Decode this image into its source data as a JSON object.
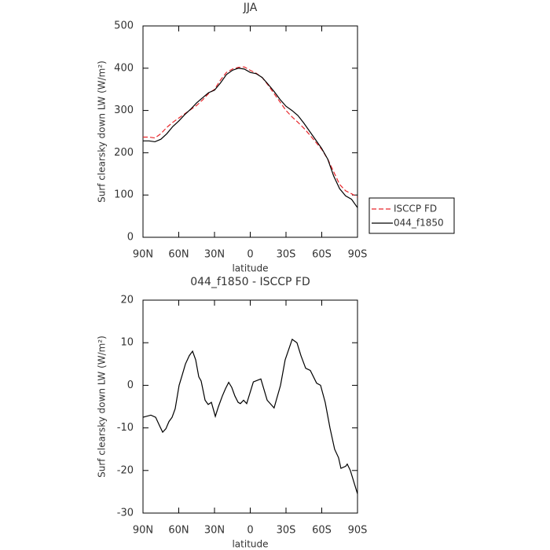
{
  "chart_data": [
    {
      "type": "line",
      "title": "JJA",
      "x_label": "latitude",
      "y_label": "Surf clearsky down LW (W/m²)",
      "xlim": [
        90,
        -90
      ],
      "ylim": [
        0,
        500
      ],
      "xticks": [
        {
          "value": 90,
          "label": "90N"
        },
        {
          "value": 60,
          "label": "60N"
        },
        {
          "value": 30,
          "label": "30N"
        },
        0,
        {
          "value": -30,
          "label": "30S"
        },
        {
          "value": -60,
          "label": "60S"
        },
        {
          "value": -90,
          "label": "90S"
        }
      ],
      "yticks": [
        0,
        100,
        200,
        300,
        400,
        500
      ],
      "legend": "right",
      "x": [
        90,
        85,
        80,
        75,
        70,
        65,
        60,
        55,
        50,
        45,
        40,
        35,
        30,
        25,
        20,
        15,
        10,
        5,
        0,
        -5,
        -10,
        -15,
        -20,
        -25,
        -30,
        -35,
        -40,
        -45,
        -50,
        -55,
        -60,
        -65,
        -70,
        -75,
        -80,
        -85,
        -90
      ],
      "series": [
        {
          "name": "ISCCP FD",
          "color": "#e8262b",
          "linestyle": "dashed",
          "values": [
            237,
            237,
            235,
            245,
            260,
            272,
            282,
            292,
            302,
            312,
            325,
            340,
            350,
            372,
            390,
            398,
            402,
            403,
            395,
            388,
            378,
            360,
            340,
            320,
            300,
            285,
            272,
            258,
            242,
            225,
            208,
            185,
            155,
            125,
            110,
            103,
            95
          ]
        },
        {
          "name": "044_f1850",
          "color": "#000000",
          "linestyle": "solid",
          "values": [
            228,
            228,
            226,
            232,
            245,
            262,
            275,
            290,
            303,
            318,
            330,
            342,
            348,
            365,
            385,
            395,
            400,
            398,
            390,
            387,
            378,
            362,
            345,
            326,
            310,
            300,
            288,
            270,
            250,
            230,
            210,
            185,
            145,
            115,
            98,
            90,
            70
          ]
        }
      ]
    },
    {
      "type": "line",
      "title": "044_f1850 - ISCCP FD",
      "x_label": "latitude",
      "y_label": "Surf clearsky down LW (W/m²)",
      "xlim": [
        90,
        -90
      ],
      "ylim": [
        -30,
        20
      ],
      "xticks": [
        {
          "value": 90,
          "label": "90N"
        },
        {
          "value": 60,
          "label": "60N"
        },
        {
          "value": 30,
          "label": "30N"
        },
        0,
        {
          "value": -30,
          "label": "30S"
        },
        {
          "value": -60,
          "label": "60S"
        },
        {
          "value": -90,
          "label": "90S"
        }
      ],
      "yticks": [
        -30,
        -20,
        -10,
        0,
        10,
        20
      ],
      "color": "#000000",
      "x": [
        90,
        83.4,
        79.4,
        76.1,
        73.5,
        70.8,
        68.2,
        65.6,
        63,
        59.7,
        57,
        54.4,
        51.1,
        48.4,
        45.8,
        43.2,
        41.2,
        37.9,
        35.3,
        32.6,
        29.3,
        26.7,
        23.4,
        20.8,
        18.1,
        15.5,
        12.9,
        10.2,
        8.3,
        5.6,
        3,
        -2.6,
        -8.9,
        -14.2,
        -20,
        -25.4,
        -29.3,
        -35.2,
        -39.2,
        -42.5,
        -46.5,
        -50.4,
        -55.7,
        -59,
        -62.9,
        -66.9,
        -70.8,
        -74.1,
        -76.1,
        -80.1,
        -81.4,
        -84,
        -90
      ],
      "values": [
        -7.5,
        -7,
        -7.5,
        -9.5,
        -11,
        -10.2,
        -8.5,
        -7.5,
        -5.5,
        0,
        2.5,
        5,
        7,
        8,
        6,
        2,
        1,
        -3.5,
        -4.5,
        -4,
        -7.3,
        -5,
        -2.5,
        -0.8,
        0.7,
        -0.5,
        -2.5,
        -4,
        -4.3,
        -3.5,
        -4.3,
        0.8,
        1.5,
        -3.5,
        -5.3,
        0,
        6,
        10.8,
        10,
        7,
        4,
        3.5,
        0.5,
        0,
        -4,
        -10,
        -15,
        -17,
        -19.5,
        -19,
        -18.5,
        -20,
        -25.5
      ]
    }
  ]
}
